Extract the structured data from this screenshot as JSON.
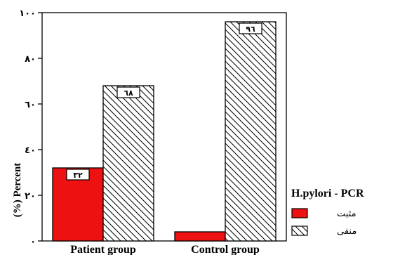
{
  "chart_data": {
    "type": "bar",
    "categories": [
      "Patient group",
      "Control group"
    ],
    "ylabel": "(%) Percent",
    "ylim": [
      0,
      100
    ],
    "yticks": [
      0,
      20,
      40,
      60,
      80,
      100
    ],
    "ytick_labels": [
      "٠",
      "٢٠",
      "٤٠",
      "٦٠",
      "٨٠",
      "١٠٠"
    ],
    "grid": false,
    "legend_position": "right",
    "legend_title": "H.pylori - PCR",
    "series": [
      {
        "name": "مثبت",
        "values": [
          32,
          4
        ],
        "color": "#ee1111",
        "pattern": "solid",
        "data_labels": [
          "٣٢",
          ""
        ]
      },
      {
        "name": "منفی",
        "values": [
          68,
          96
        ],
        "color": "#ffffff",
        "pattern": "diagonal-hatch",
        "data_labels": [
          "٦٨",
          "٩٦"
        ]
      }
    ]
  }
}
